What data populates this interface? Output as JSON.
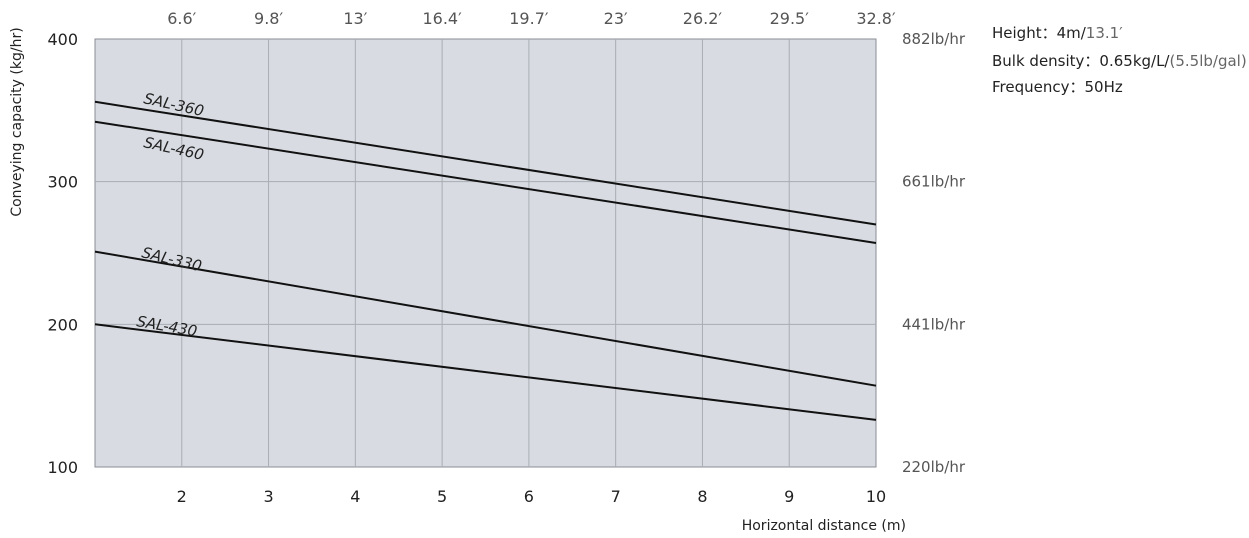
{
  "chart_data": {
    "type": "line",
    "xlabel": "Horizontal distance (m)",
    "ylabel": "Conveying capacity (kg/hr)",
    "xlim": [
      1,
      10
    ],
    "ylim": [
      100,
      400
    ],
    "x_ticks": [
      "2",
      "3",
      "4",
      "5",
      "6",
      "7",
      "8",
      "9",
      "10"
    ],
    "x_ticks_top": [
      "6.6′",
      "9.8′",
      "13′",
      "16.4′",
      "19.7′",
      "23′",
      "26.2′",
      "29.5′",
      "32.8′"
    ],
    "y_ticks": [
      "100",
      "200",
      "300",
      "400"
    ],
    "y_ticks_right": [
      "220lb/hr",
      "441lb/hr",
      "661lb/hr",
      "882lb/hr"
    ],
    "grid": true,
    "series": [
      {
        "name": "SAL-360",
        "x": [
          1,
          10
        ],
        "y": [
          356,
          270
        ]
      },
      {
        "name": "SAL-460",
        "x": [
          1,
          10
        ],
        "y": [
          342,
          257
        ]
      },
      {
        "name": "SAL-330",
        "x": [
          1,
          10
        ],
        "y": [
          251,
          157
        ]
      },
      {
        "name": "SAL-430",
        "x": [
          1,
          10
        ],
        "y": [
          200,
          133
        ]
      }
    ],
    "annotations": {
      "height_label": "Height：4m/",
      "height_imperial": "13.1′",
      "density_label": "Bulk density：0.65kg/L/",
      "density_imperial": "(5.5lb/gal)",
      "frequency_label": "Frequency：50Hz"
    },
    "colors": {
      "plot_background": "#d8dce2",
      "grid": "#a9adb3",
      "line": "#111111"
    }
  }
}
